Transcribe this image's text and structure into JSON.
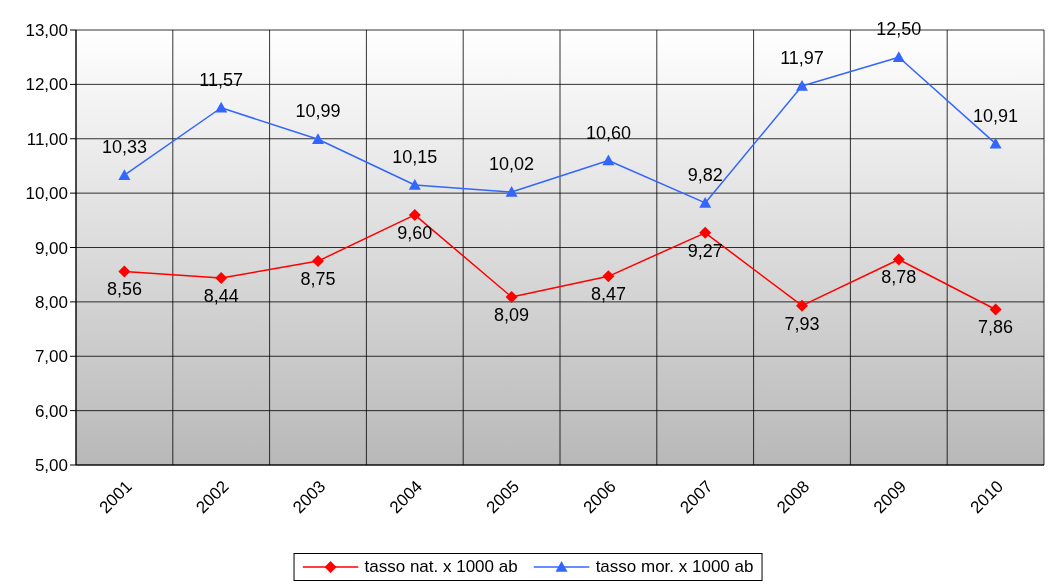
{
  "chart_data": {
    "type": "line",
    "categories": [
      "2001",
      "2002",
      "2003",
      "2004",
      "2005",
      "2006",
      "2007",
      "2008",
      "2009",
      "2010"
    ],
    "series": [
      {
        "name": "tasso nat. x 1000 ab",
        "color": "#ff0000",
        "marker": "diamond",
        "values": [
          8.56,
          8.44,
          8.75,
          9.6,
          8.09,
          8.47,
          9.27,
          7.93,
          8.78,
          7.86
        ],
        "value_labels": [
          "8,56",
          "8,44",
          "8,75",
          "9,60",
          "8,09",
          "8,47",
          "9,27",
          "7,93",
          "8,78",
          "7,86"
        ]
      },
      {
        "name": "tasso mor. x 1000 ab",
        "color": "#3366ff",
        "marker": "triangle",
        "values": [
          10.33,
          11.57,
          10.99,
          10.15,
          10.02,
          10.6,
          9.82,
          11.97,
          12.5,
          10.91
        ],
        "value_labels": [
          "10,33",
          "11,57",
          "10,99",
          "10,15",
          "10,02",
          "10,60",
          "9,82",
          "11,97",
          "12,50",
          "10,91"
        ]
      }
    ],
    "ylim": [
      5,
      13
    ],
    "yticks": [
      {
        "value": 5,
        "label": "5,00"
      },
      {
        "value": 6,
        "label": "6,00"
      },
      {
        "value": 7,
        "label": "7,00"
      },
      {
        "value": 8,
        "label": "8,00"
      },
      {
        "value": 9,
        "label": "9,00"
      },
      {
        "value": 10,
        "label": "10,00"
      },
      {
        "value": 11,
        "label": "11,00"
      },
      {
        "value": 12,
        "label": "12,00"
      },
      {
        "value": 13,
        "label": "13,00"
      }
    ],
    "grid": true,
    "legend": "bottom"
  }
}
